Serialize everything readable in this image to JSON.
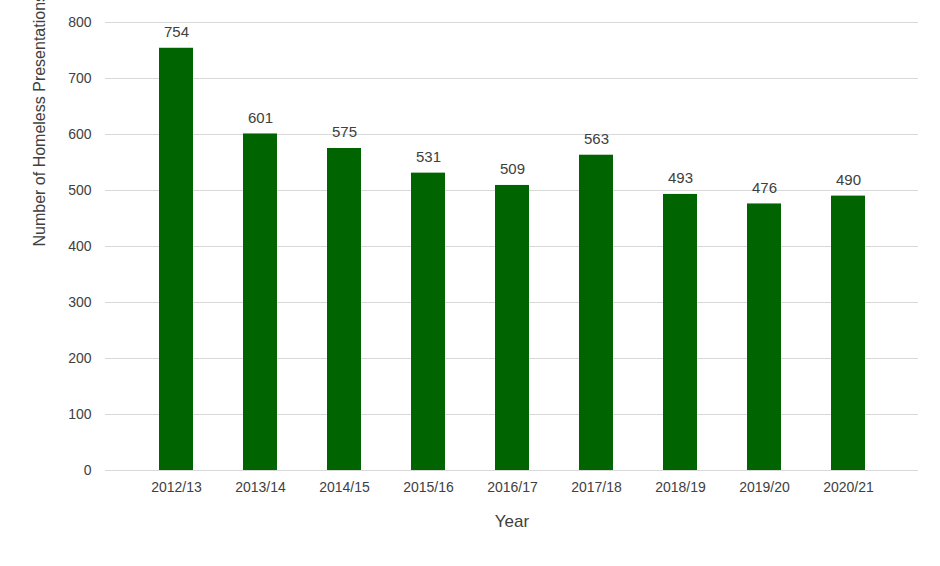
{
  "chart_data": {
    "type": "bar",
    "categories": [
      "2012/13",
      "2013/14",
      "2014/15",
      "2015/16",
      "2016/17",
      "2017/18",
      "2018/19",
      "2019/20",
      "2020/21"
    ],
    "values": [
      754,
      601,
      575,
      531,
      509,
      563,
      493,
      476,
      490
    ],
    "color": "#006400",
    "xlabel": "Year",
    "ylabel": "Number of Homeless Presentations",
    "ylim": [
      0,
      800
    ],
    "yticks": [
      0,
      100,
      200,
      300,
      400,
      500,
      600,
      700,
      800
    ],
    "grid": true,
    "data_labels": true
  }
}
